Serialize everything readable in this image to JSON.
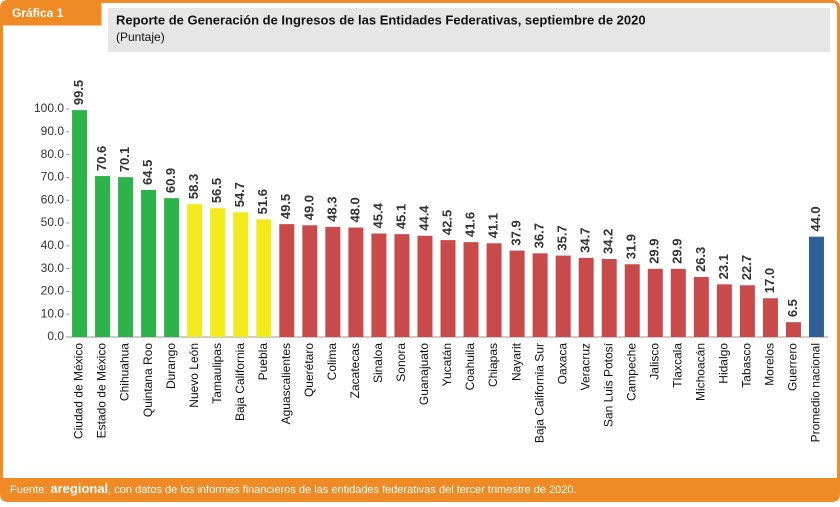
{
  "chart_data": {
    "type": "bar",
    "tag": "Gráfica 1",
    "title": "Reporte de Generación de Ingresos de las Entidades Federativas, septiembre de 2020",
    "subtitle": "(Puntaje)",
    "categories": [
      "Ciudad de México",
      "Estado de México",
      "Chihuahua",
      "Quintana Roo",
      "Durango",
      "Nuevo León",
      "Tamaulipas",
      "Baja California",
      "Puebla",
      "Aguascalientes",
      "Querétaro",
      "Colima",
      "Zacatecas",
      "Sinaloa",
      "Sonora",
      "Guanajuato",
      "Yucatán",
      "Coahuila",
      "Chiapas",
      "Nayarit",
      "Baja California Sur",
      "Oaxaca",
      "Veracruz",
      "San Luis Potosí",
      "Campeche",
      "Jalisco",
      "Tlaxcala",
      "Michoacán",
      "Hidalgo",
      "Tabasco",
      "Morelos",
      "Guerrero",
      "Promedio nacional"
    ],
    "values": [
      99.5,
      70.6,
      70.1,
      64.5,
      60.9,
      58.3,
      56.5,
      54.7,
      51.6,
      49.5,
      49,
      48.3,
      48,
      45.4,
      45.1,
      44.4,
      42.5,
      41.6,
      41.1,
      37.9,
      36.7,
      35.7,
      34.7,
      34.2,
      31.9,
      29.9,
      29.9,
      26.3,
      23.1,
      22.7,
      17,
      6.5,
      44
    ],
    "value_labels": [
      "99.5",
      "70.6",
      "70.1",
      "64.5",
      "60.9",
      "58.3",
      "56.5",
      "54.7",
      "51.6",
      "49.5",
      "49.0",
      "48.3",
      "48.0",
      "45.4",
      "45.1",
      "44.4",
      "42.5",
      "41.6",
      "41.1",
      "37.9",
      "36.7",
      "35.7",
      "34.7",
      "34.2",
      "31.9",
      "29.9",
      "29.9",
      "26.3",
      "23.1",
      "22.7",
      "17.0",
      "6.5",
      "44.0"
    ],
    "colors": [
      "#2eb34a",
      "#2eb34a",
      "#2eb34a",
      "#2eb34a",
      "#2eb34a",
      "#f2ea1d",
      "#f2ea1d",
      "#f2ea1d",
      "#f2ea1d",
      "#c94a4a",
      "#c94a4a",
      "#c94a4a",
      "#c94a4a",
      "#c94a4a",
      "#c94a4a",
      "#c94a4a",
      "#c94a4a",
      "#c94a4a",
      "#c94a4a",
      "#c94a4a",
      "#c94a4a",
      "#c94a4a",
      "#c94a4a",
      "#c94a4a",
      "#c94a4a",
      "#c94a4a",
      "#c94a4a",
      "#c94a4a",
      "#c94a4a",
      "#c94a4a",
      "#c94a4a",
      "#c94a4a",
      "#2e5f96"
    ],
    "ylim": [
      0,
      100
    ],
    "yticks": [
      {
        "value": 0,
        "label": "0.0"
      },
      {
        "value": 10,
        "label": "10.0"
      },
      {
        "value": 20,
        "label": "20.0"
      },
      {
        "value": 30,
        "label": "30.0"
      },
      {
        "value": 40,
        "label": "40.0"
      },
      {
        "value": 50,
        "label": "50.0"
      },
      {
        "value": 60,
        "label": "60.0"
      },
      {
        "value": 70,
        "label": "70.0"
      },
      {
        "value": 80,
        "label": "80.0"
      },
      {
        "value": 90,
        "label": "90.0"
      },
      {
        "value": 100,
        "label": "100.0"
      }
    ],
    "source": {
      "prefix": "Fuente:",
      "brand": "aregional",
      "text": ", con datos de los informes financieros de las entidades federativas del tercer trimestre de 2020."
    }
  }
}
